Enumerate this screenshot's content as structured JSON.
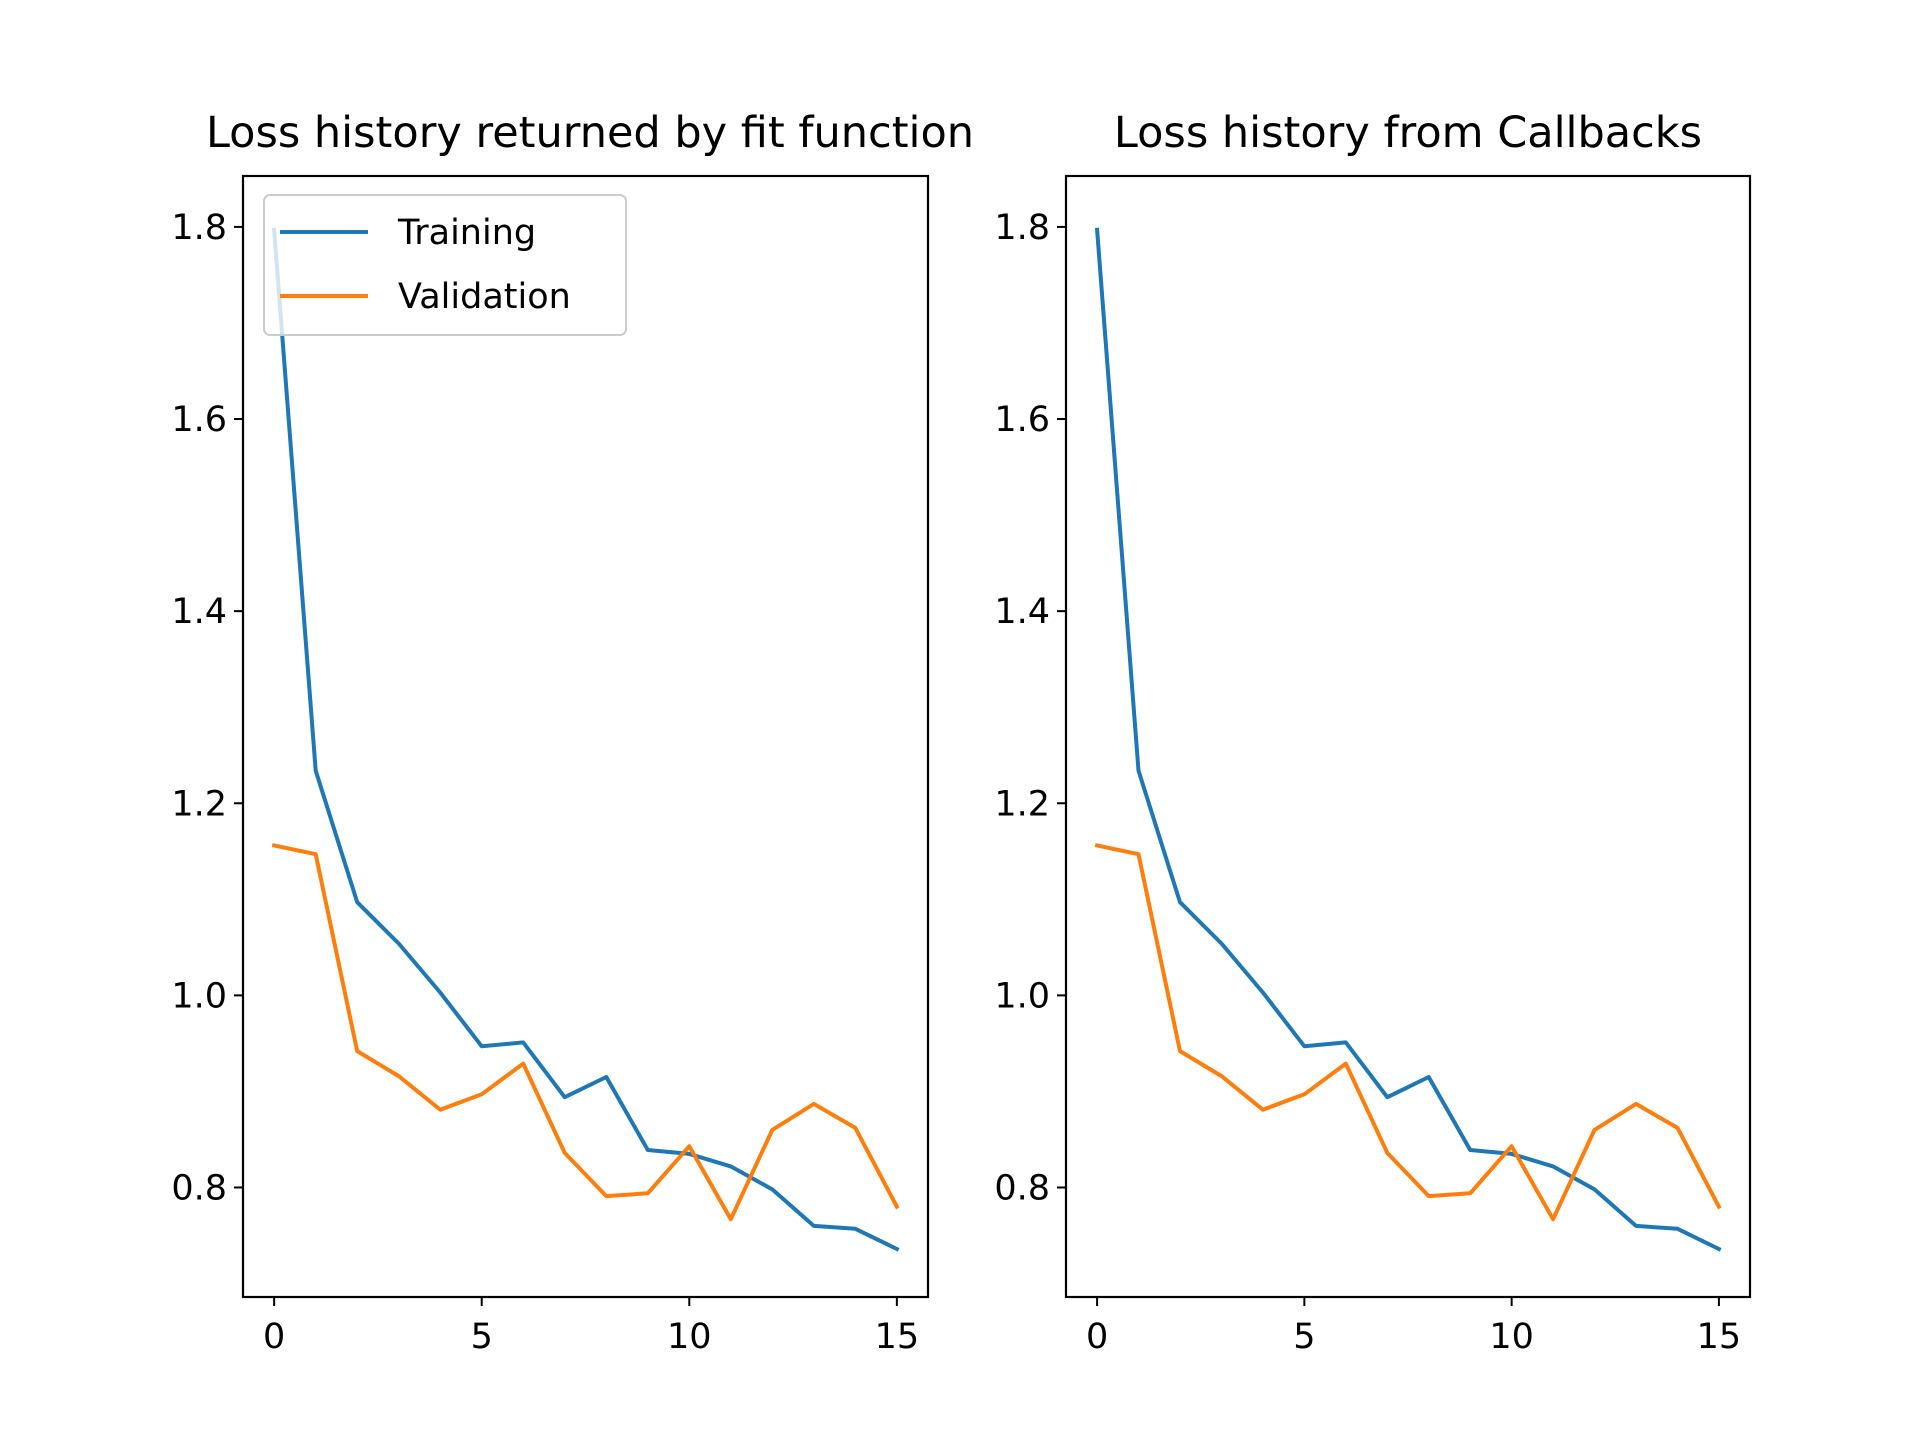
{
  "chart_data": [
    {
      "type": "line",
      "title": "Loss history returned by fit function",
      "xlabel": "",
      "ylabel": "",
      "x": [
        0,
        1,
        2,
        3,
        4,
        5,
        6,
        7,
        8,
        9,
        10,
        11,
        12,
        13,
        14,
        15
      ],
      "xlim": [
        -0.75,
        15.75
      ],
      "ylim": [
        0.686,
        1.853
      ],
      "xticks": [
        0,
        5,
        10,
        15
      ],
      "xtick_labels": [
        "0",
        "5",
        "10",
        "15"
      ],
      "yticks": [
        0.8,
        1.0,
        1.2,
        1.4,
        1.6,
        1.8
      ],
      "ytick_labels": [
        "0.8",
        "1.0",
        "1.2",
        "1.4",
        "1.6",
        "1.8"
      ],
      "grid": false,
      "legend": {
        "placement": "upper-left",
        "entries": [
          "Training",
          "Validation"
        ]
      },
      "series": [
        {
          "name": "Training",
          "color": "#1f77b4",
          "values": [
            1.797,
            1.234,
            1.097,
            1.054,
            1.003,
            0.947,
            0.951,
            0.894,
            0.915,
            0.839,
            0.835,
            0.822,
            0.798,
            0.76,
            0.757,
            0.736
          ]
        },
        {
          "name": "Validation",
          "color": "#ff7f0e",
          "values": [
            1.156,
            1.147,
            0.942,
            0.916,
            0.881,
            0.897,
            0.929,
            0.836,
            0.791,
            0.794,
            0.843,
            0.767,
            0.86,
            0.887,
            0.862,
            0.78
          ]
        }
      ]
    },
    {
      "type": "line",
      "title": "Loss history from Callbacks",
      "xlabel": "",
      "ylabel": "",
      "x": [
        0,
        1,
        2,
        3,
        4,
        5,
        6,
        7,
        8,
        9,
        10,
        11,
        12,
        13,
        14,
        15
      ],
      "xlim": [
        -0.75,
        15.75
      ],
      "ylim": [
        0.686,
        1.853
      ],
      "xticks": [
        0,
        5,
        10,
        15
      ],
      "xtick_labels": [
        "0",
        "5",
        "10",
        "15"
      ],
      "yticks": [
        0.8,
        1.0,
        1.2,
        1.4,
        1.6,
        1.8
      ],
      "ytick_labels": [
        "0.8",
        "1.0",
        "1.2",
        "1.4",
        "1.6",
        "1.8"
      ],
      "grid": false,
      "legend": null,
      "series": [
        {
          "color": "#1f77b4",
          "values": [
            1.797,
            1.234,
            1.097,
            1.054,
            1.003,
            0.947,
            0.951,
            0.894,
            0.915,
            0.839,
            0.835,
            0.822,
            0.798,
            0.76,
            0.757,
            0.736
          ]
        },
        {
          "color": "#ff7f0e",
          "values": [
            1.156,
            1.147,
            0.942,
            0.916,
            0.881,
            0.897,
            0.929,
            0.836,
            0.791,
            0.794,
            0.843,
            0.767,
            0.86,
            0.887,
            0.862,
            0.78
          ]
        }
      ]
    }
  ]
}
